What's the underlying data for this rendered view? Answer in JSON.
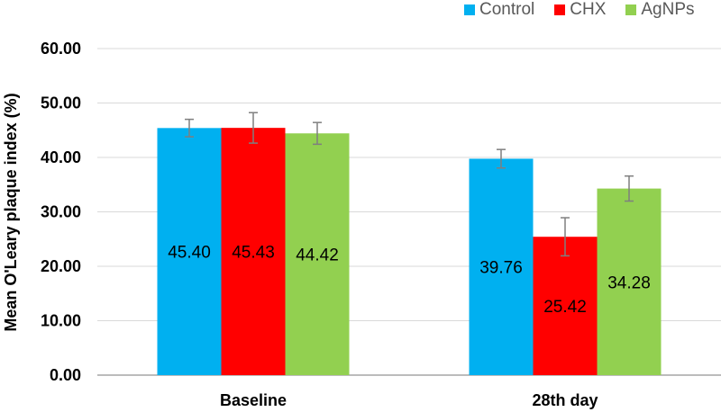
{
  "chart_data": {
    "type": "bar",
    "categories": [
      "Baseline",
      "28th day"
    ],
    "series": [
      {
        "name": "Control",
        "color": "#00B0F0",
        "values": [
          45.4,
          39.76
        ],
        "errors": [
          1.6,
          1.7
        ],
        "labels": [
          "45.40",
          "39.76"
        ]
      },
      {
        "name": "CHX",
        "color": "#FF0000",
        "values": [
          45.43,
          25.42
        ],
        "errors": [
          2.8,
          3.5
        ],
        "labels": [
          "45.43",
          "25.42"
        ]
      },
      {
        "name": "AgNPs",
        "color": "#92D050",
        "values": [
          44.42,
          34.28
        ],
        "errors": [
          2.0,
          2.3
        ],
        "labels": [
          "44.42",
          "34.28"
        ]
      }
    ],
    "ylabel": "Mean O'Leary plaque index (%)",
    "xlabel": "",
    "ylim": [
      0,
      60
    ],
    "yticks": [
      "0.00",
      "10.00",
      "20.00",
      "30.00",
      "40.00",
      "50.00",
      "60.00"
    ],
    "grid": true,
    "legend_position": "top-right"
  }
}
